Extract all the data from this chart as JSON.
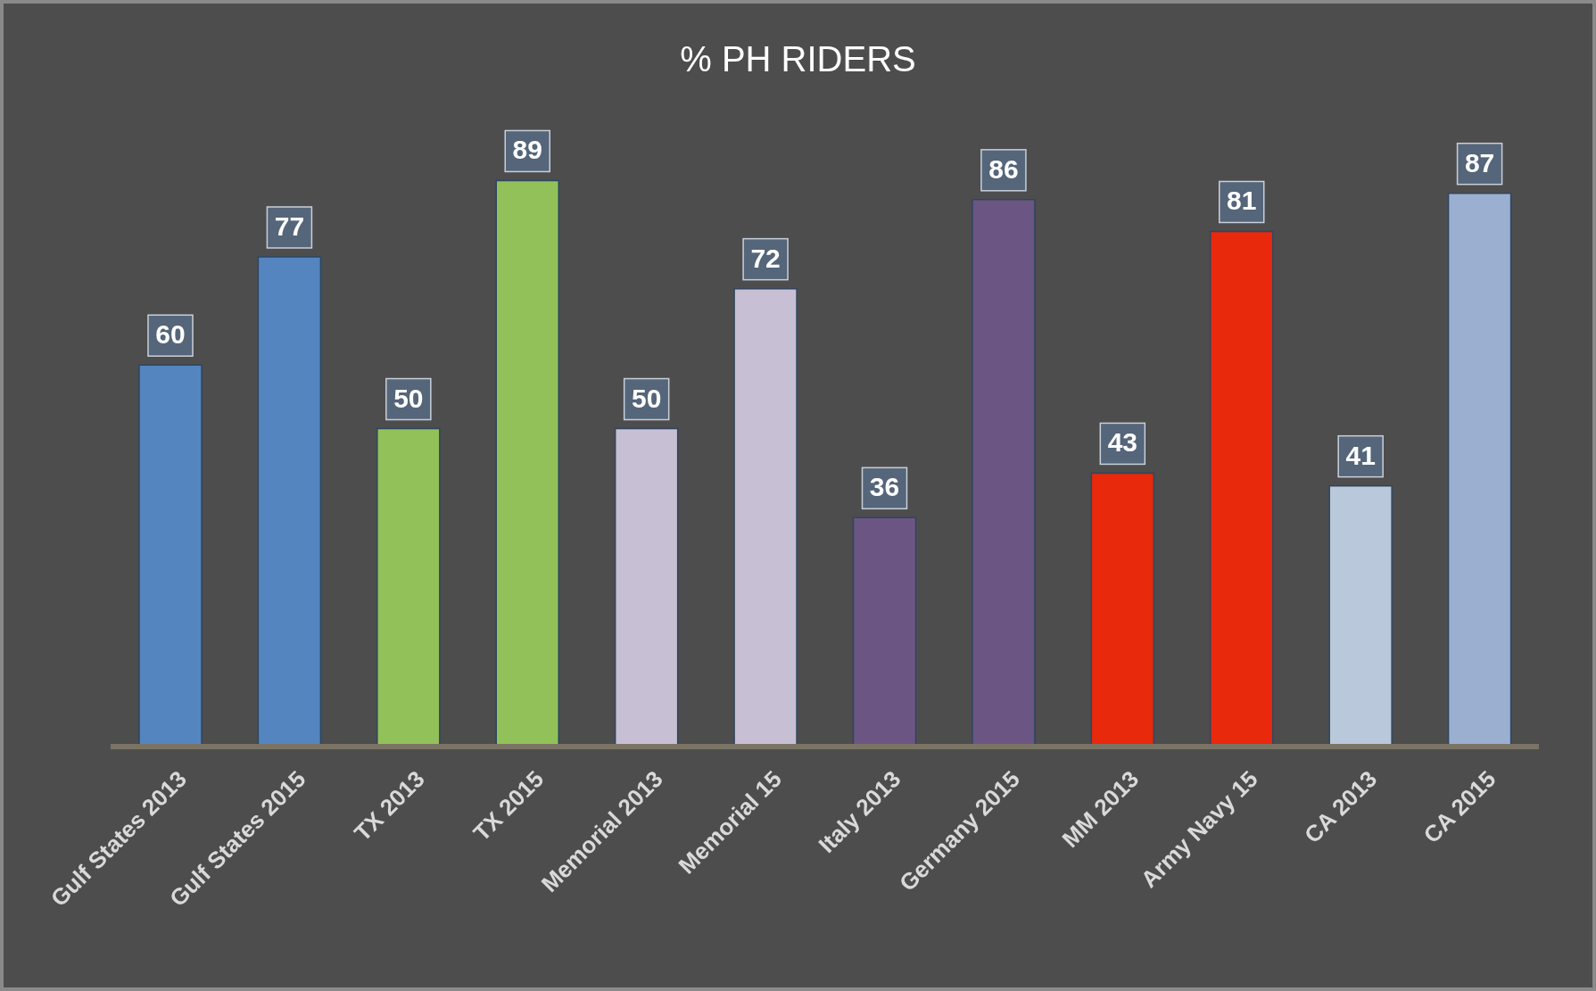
{
  "chart_data": {
    "type": "bar",
    "title": "% PH RIDERS",
    "categories": [
      "Gulf States 2013",
      "Gulf States 2015",
      "TX 2013",
      "TX 2015",
      "Memorial 2013",
      "Memorial 15",
      "Italy 2013",
      "Germany 2015",
      "MM 2013",
      "Army Navy 15",
      "CA 2013",
      "CA 2015"
    ],
    "values": [
      60,
      77,
      50,
      89,
      50,
      72,
      36,
      86,
      43,
      81,
      41,
      87
    ],
    "colors": [
      "#5585bf",
      "#5585bf",
      "#92c15a",
      "#92c15a",
      "#c7bfd3",
      "#c7bfd3",
      "#6b5683",
      "#6b5683",
      "#e8290b",
      "#e8290b",
      "#b9c8da",
      "#9bb0d0"
    ],
    "data_labels": true,
    "grid": false,
    "legend": false
  }
}
